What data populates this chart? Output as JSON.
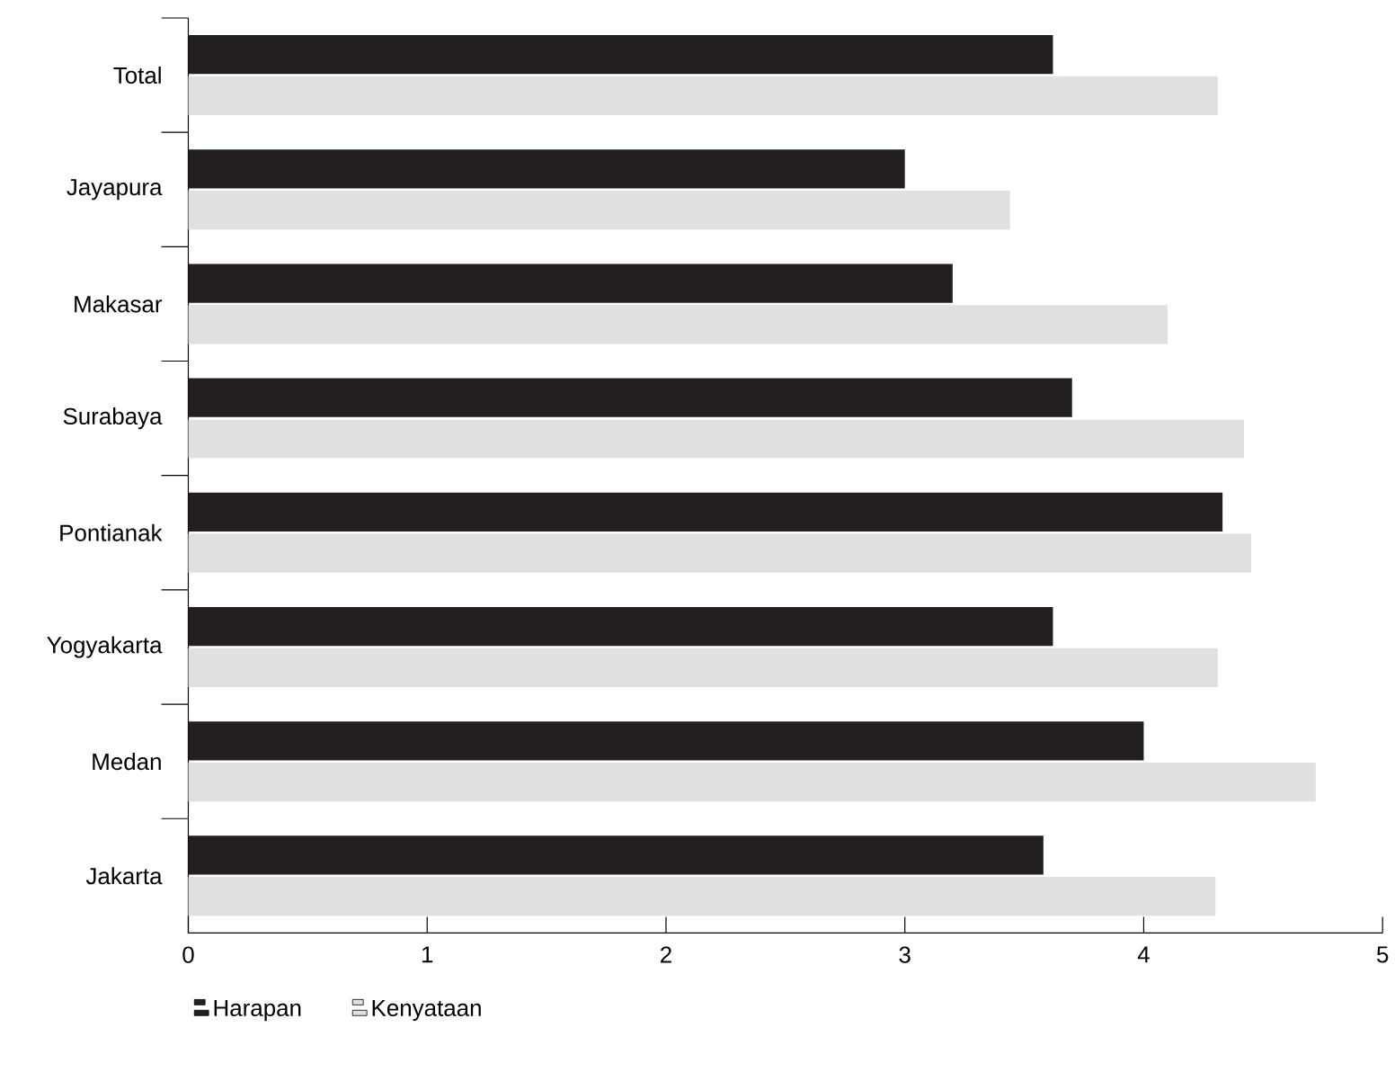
{
  "chart_data": {
    "type": "bar",
    "orientation": "horizontal",
    "categories": [
      "Total",
      "Jayapura",
      "Makasar",
      "Surabaya",
      "Pontianak",
      "Yogyakarta",
      "Medan",
      "Jakarta"
    ],
    "series": [
      {
        "name": "Harapan",
        "color": "#231f20",
        "values": [
          3.62,
          3.0,
          3.2,
          3.7,
          4.33,
          3.62,
          4.0,
          3.58
        ]
      },
      {
        "name": "Kenyataan",
        "color": "#dfe0e2",
        "values": [
          4.31,
          3.44,
          4.1,
          4.42,
          4.45,
          4.31,
          4.72,
          4.3
        ]
      }
    ],
    "xlim": [
      0,
      5
    ],
    "xticks": [
      0,
      1,
      2,
      3,
      4,
      5
    ],
    "legend": "bottom left"
  }
}
